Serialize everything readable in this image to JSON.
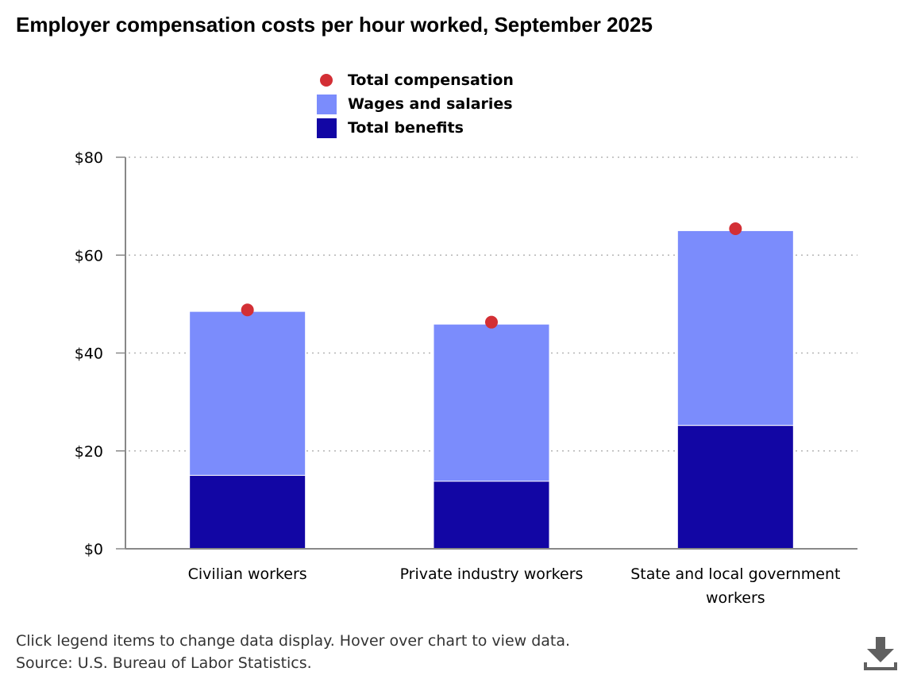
{
  "title": "Employer compensation costs per hour worked, September 2025",
  "legend": [
    {
      "label": "Total compensation",
      "shape": "dot",
      "color": "#d32f35"
    },
    {
      "label": "Wages and salaries",
      "shape": "square",
      "color": "#7b8cfc"
    },
    {
      "label": "Total benefits",
      "shape": "square",
      "color": "#1206a4"
    }
  ],
  "footer": {
    "note": "Click legend items to change data display. Hover over chart to view data.",
    "source": "Source: U.S. Bureau of Labor Statistics."
  },
  "download_icon": "download-icon",
  "chart_data": {
    "type": "bar",
    "stacked": true,
    "categories": [
      "Civilian workers",
      "Private industry workers",
      "State and local government workers"
    ],
    "series": [
      {
        "name": "Total benefits",
        "kind": "bar",
        "color": "#1206a4",
        "values": [
          15.0,
          13.8,
          25.2
        ]
      },
      {
        "name": "Wages and salaries",
        "kind": "bar",
        "color": "#7b8cfc",
        "values": [
          33.5,
          32.1,
          39.8
        ]
      },
      {
        "name": "Total compensation",
        "kind": "point",
        "color": "#d32f35",
        "values": [
          48.8,
          46.3,
          65.4
        ]
      }
    ],
    "y_ticks": [
      "$0",
      "$20",
      "$40",
      "$60",
      "$80"
    ],
    "y_tick_values": [
      0,
      20,
      40,
      60,
      80
    ],
    "ylim": [
      0,
      80
    ],
    "grid": true,
    "legend_position": "top"
  }
}
